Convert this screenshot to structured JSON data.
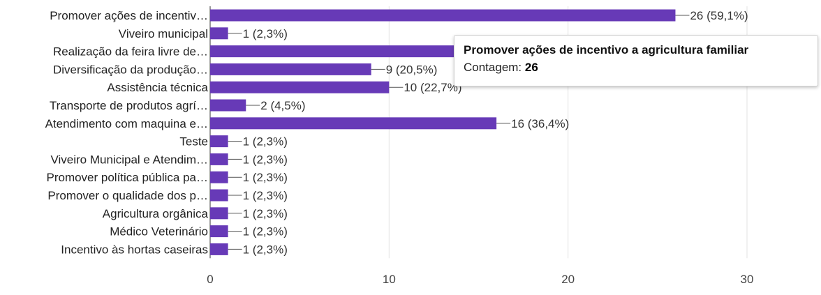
{
  "chart_data": {
    "type": "bar",
    "orientation": "horizontal",
    "categories": [
      "Promover ações de incentiv…",
      "Viveiro municipal",
      "Realização da feira livre de…",
      "Diversificação da produção…",
      "Assistência técnica",
      "Transporte de produtos agrí…",
      "Atendimento com maquina e…",
      "Teste",
      "Viveiro Municipal e Atendim…",
      "Promover política pública pa…",
      "Promover o qualidade dos p…",
      "Agricultura orgânica",
      "Médico Veterinário",
      "Incentivo às hortas caseiras"
    ],
    "values": [
      26,
      1,
      14,
      9,
      10,
      2,
      16,
      1,
      1,
      1,
      1,
      1,
      1,
      1
    ],
    "data_labels": [
      "26 (59,1%)",
      "1 (2,3%)",
      "",
      "9 (20,5%)",
      "10 (22,7%)",
      "2 (4,5%)",
      "16 (36,4%)",
      "1 (2,3%)",
      "1 (2,3%)",
      "1 (2,3%)",
      "1 (2,3%)",
      "1 (2,3%)",
      "1 (2,3%)",
      "1 (2,3%)"
    ],
    "xlim": [
      0,
      30
    ],
    "x_ticks": [
      0,
      10,
      20,
      30
    ],
    "grid": true,
    "bar_color": "#673ab7",
    "title": "",
    "xlabel": "",
    "ylabel": ""
  },
  "tooltip": {
    "title": "Promover ações de incentivo a agricultura familiar",
    "count_label": "Contagem:",
    "count_value": "26"
  }
}
